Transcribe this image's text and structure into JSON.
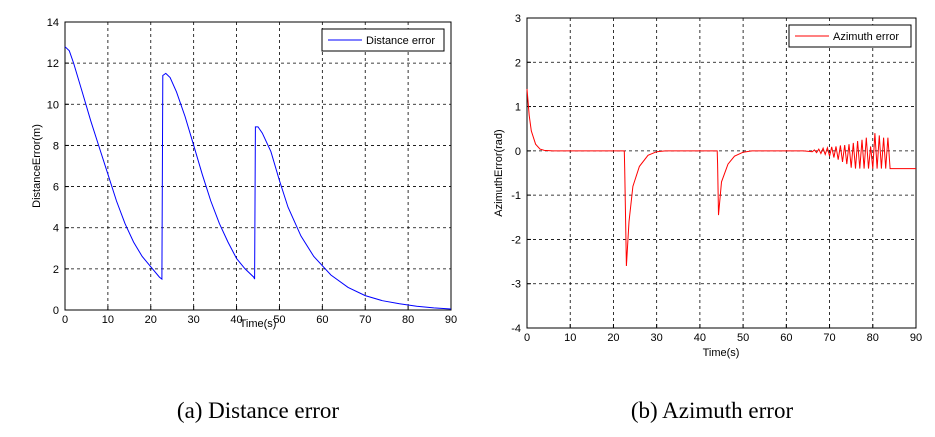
{
  "chart_data": [
    {
      "type": "line",
      "title": "",
      "xlabel": "Time(s)",
      "ylabel": "DistanceError(m)",
      "xlim": [
        0,
        90
      ],
      "ylim": [
        0,
        14
      ],
      "x_ticks": [
        "0",
        "10",
        "20",
        "30",
        "40",
        "50",
        "60",
        "70",
        "80",
        "90"
      ],
      "y_ticks": [
        "0",
        "2",
        "4",
        "6",
        "8",
        "10",
        "12",
        "14"
      ],
      "grid": true,
      "legend": "top-right",
      "caption": "(a)  Distance  error",
      "series": [
        {
          "name": "Distance error",
          "color": "#0000ff",
          "points": [
            [
              0,
              12.8
            ],
            [
              1,
              12.6
            ],
            [
              2,
              12.0
            ],
            [
              4,
              10.6
            ],
            [
              6,
              9.2
            ],
            [
              8,
              7.9
            ],
            [
              10,
              6.6
            ],
            [
              12,
              5.3
            ],
            [
              14,
              4.2
            ],
            [
              16,
              3.3
            ],
            [
              18,
              2.6
            ],
            [
              20,
              2.1
            ],
            [
              22,
              1.6
            ],
            [
              22.6,
              1.5
            ],
            [
              22.8,
              11.4
            ],
            [
              23.5,
              11.5
            ],
            [
              24.5,
              11.3
            ],
            [
              26,
              10.6
            ],
            [
              28,
              9.4
            ],
            [
              30,
              8.0
            ],
            [
              32,
              6.6
            ],
            [
              34,
              5.3
            ],
            [
              36,
              4.2
            ],
            [
              38,
              3.3
            ],
            [
              40,
              2.5
            ],
            [
              42,
              2.0
            ],
            [
              44,
              1.6
            ],
            [
              44.2,
              1.5
            ],
            [
              44.4,
              8.9
            ],
            [
              45,
              8.9
            ],
            [
              46,
              8.6
            ],
            [
              48,
              7.7
            ],
            [
              50,
              6.3
            ],
            [
              52,
              5.0
            ],
            [
              55,
              3.6
            ],
            [
              58,
              2.6
            ],
            [
              62,
              1.7
            ],
            [
              66,
              1.1
            ],
            [
              70,
              0.7
            ],
            [
              74,
              0.45
            ],
            [
              78,
              0.3
            ],
            [
              82,
              0.18
            ],
            [
              86,
              0.1
            ],
            [
              90,
              0.05
            ]
          ]
        }
      ]
    },
    {
      "type": "line",
      "title": "",
      "xlabel": "Time(s)",
      "ylabel": "AzimuthError(rad)",
      "xlim": [
        0,
        90
      ],
      "ylim": [
        -4,
        3
      ],
      "x_ticks": [
        "0",
        "10",
        "20",
        "30",
        "40",
        "50",
        "60",
        "70",
        "80",
        "90"
      ],
      "y_ticks": [
        "-4",
        "-3",
        "-2",
        "-1",
        "0",
        "1",
        "2",
        "3"
      ],
      "grid": true,
      "legend": "top-right",
      "caption": "(b)  Azimuth  error",
      "series": [
        {
          "name": "Azimuth error",
          "color": "#ff0000",
          "points": [
            [
              0,
              1.4
            ],
            [
              0.5,
              0.8
            ],
            [
              1,
              0.45
            ],
            [
              2,
              0.15
            ],
            [
              3,
              0.04
            ],
            [
              4,
              0.01
            ],
            [
              6,
              0.0
            ],
            [
              22.5,
              0.0
            ],
            [
              22.6,
              -0.4
            ],
            [
              23,
              -2.6
            ],
            [
              23.6,
              -1.6
            ],
            [
              24.5,
              -0.8
            ],
            [
              26,
              -0.35
            ],
            [
              28,
              -0.1
            ],
            [
              30,
              -0.02
            ],
            [
              32,
              0.0
            ],
            [
              44,
              0.0
            ],
            [
              44.1,
              -0.3
            ],
            [
              44.3,
              -1.45
            ],
            [
              45,
              -0.7
            ],
            [
              46.5,
              -0.3
            ],
            [
              48,
              -0.12
            ],
            [
              50,
              -0.03
            ],
            [
              52,
              0.0
            ],
            [
              64,
              0.0
            ],
            [
              66,
              -0.02
            ],
            [
              66.5,
              0.02
            ],
            [
              67,
              -0.04
            ],
            [
              67.5,
              0.04
            ],
            [
              68,
              -0.06
            ],
            [
              68.5,
              0.06
            ],
            [
              69,
              -0.08
            ],
            [
              69.5,
              0.07
            ],
            [
              70,
              -0.12
            ],
            [
              70.5,
              0.09
            ],
            [
              71,
              -0.15
            ],
            [
              71.5,
              0.1
            ],
            [
              72,
              -0.2
            ],
            [
              72.5,
              0.12
            ],
            [
              73,
              -0.25
            ],
            [
              73.5,
              0.13
            ],
            [
              74,
              -0.3
            ],
            [
              74.5,
              0.15
            ],
            [
              75,
              -0.38
            ],
            [
              75.5,
              0.18
            ],
            [
              76,
              -0.4
            ],
            [
              76.5,
              0.22
            ],
            [
              77,
              -0.4
            ],
            [
              77.5,
              0.25
            ],
            [
              78,
              -0.4
            ],
            [
              78.5,
              0.3
            ],
            [
              79,
              -0.4
            ],
            [
              79.5,
              0.1
            ],
            [
              80,
              -0.4
            ],
            [
              80.5,
              0.4
            ],
            [
              81,
              -0.4
            ],
            [
              81.5,
              0.35
            ],
            [
              82,
              -0.4
            ],
            [
              82.5,
              0.3
            ],
            [
              83,
              -0.4
            ],
            [
              83.5,
              0.3
            ],
            [
              84,
              -0.4
            ],
            [
              90,
              -0.4
            ]
          ]
        }
      ]
    }
  ]
}
